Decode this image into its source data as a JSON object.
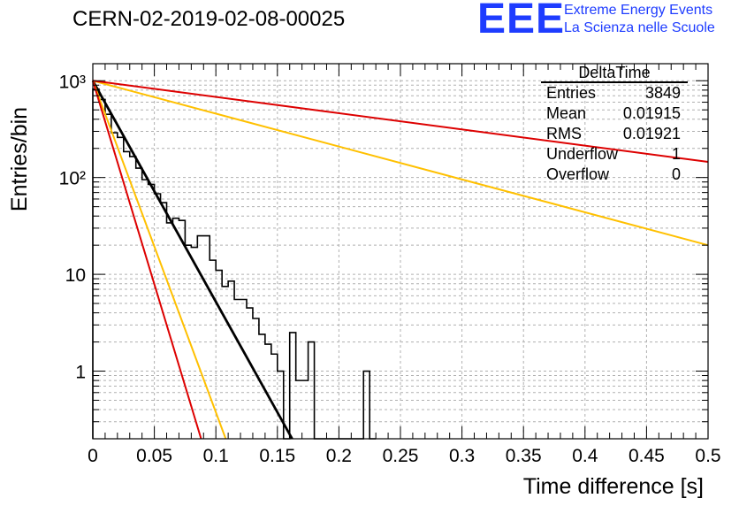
{
  "header": {
    "run_title": "CERN-02-2019-02-08-00025",
    "logo_text": "EEE",
    "logo_line1": "Extreme Energy Events",
    "logo_line2": "La Scienza nelle Scuole"
  },
  "stats_box": {
    "title": "DeltaTime",
    "rows": [
      {
        "label": "Entries",
        "value": "3849"
      },
      {
        "label": "Mean",
        "value": "0.01915"
      },
      {
        "label": "RMS",
        "value": "0.01921"
      },
      {
        "label": "Underflow",
        "value": "1"
      },
      {
        "label": "Overflow",
        "value": "0"
      }
    ]
  },
  "chart_data": {
    "type": "line",
    "xlabel": "Time difference [s]",
    "ylabel": "Entries/bin",
    "xlim": [
      0,
      0.5
    ],
    "ylim": [
      0.2,
      1500
    ],
    "yscale": "log",
    "grid": true,
    "x_ticks": [
      "0",
      "0.05",
      "0.1",
      "0.15",
      "0.2",
      "0.25",
      "0.3",
      "0.35",
      "0.4",
      "0.45",
      "0.5"
    ],
    "y_ticks": [
      {
        "value": 1,
        "label": "1"
      },
      {
        "value": 10,
        "label": "10"
      },
      {
        "value": 100,
        "label": "10²"
      },
      {
        "value": 1000,
        "label": "10³"
      }
    ],
    "histogram": {
      "bin_width": 0.005,
      "color": "#000000",
      "counts": [
        820,
        640,
        450,
        290,
        260,
        185,
        165,
        125,
        95,
        85,
        68,
        55,
        34,
        38,
        36,
        20,
        19,
        25,
        25,
        14,
        11,
        7.5,
        8.5,
        5.5,
        5.5,
        4.5,
        3.5,
        2.4,
        1.9,
        1.5,
        1.0,
        0.2,
        2.5,
        0.8,
        0.8,
        2.0,
        0.2,
        0.2,
        0.2,
        0.2,
        0.2,
        0.2,
        0.2,
        0.2,
        1.0,
        0.2
      ]
    },
    "series": [
      {
        "name": "",
        "color": "#000000",
        "points": [
          [
            0,
            1000
          ],
          [
            0.162,
            0.2
          ]
        ]
      },
      {
        "name": "",
        "color": "#ffc000",
        "points": [
          [
            0,
            1000
          ],
          [
            0.5,
            20
          ]
        ]
      },
      {
        "name": "",
        "color": "#dd0000",
        "points": [
          [
            0,
            1000
          ],
          [
            0.5,
            145
          ]
        ]
      },
      {
        "name": "",
        "color": "#ffc000",
        "points": [
          [
            0,
            1000
          ],
          [
            0.108,
            0.2
          ]
        ]
      },
      {
        "name": "",
        "color": "#dd0000",
        "points": [
          [
            0,
            1000
          ],
          [
            0.088,
            0.2
          ]
        ]
      }
    ]
  }
}
